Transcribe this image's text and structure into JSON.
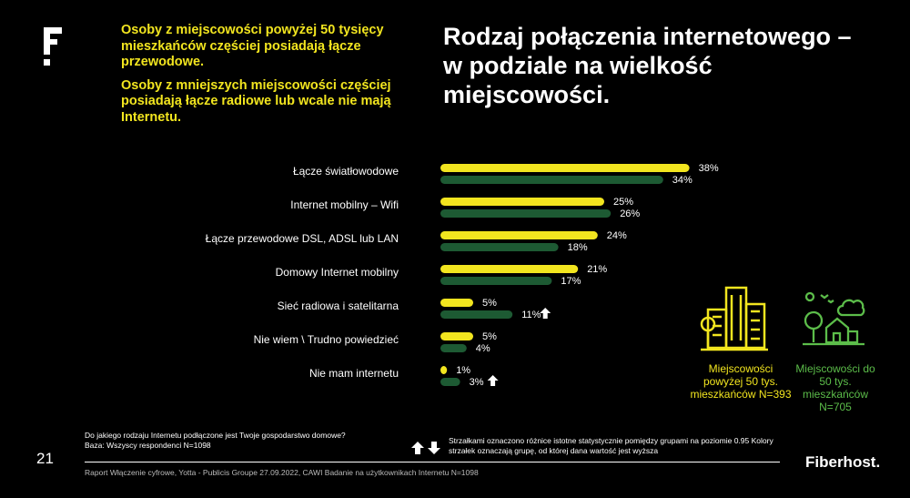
{
  "intro": {
    "p1": "Osoby z miejscowości powyżej 50 tysięcy mieszkańców częściej posiadają łącze przewodowe.",
    "p2": "Osoby z mniejszych miejscowości częściej posiadają łącze radiowe lub wcale nie mają Internetu."
  },
  "title": "Rodzaj połączenia internetowego – w podziale na wielkość miejscowości.",
  "colors": {
    "big": "#f2e51f",
    "small": "#1d5a33",
    "accent_green": "#5cbd4a",
    "background": "#000000"
  },
  "chart_data": {
    "type": "bar",
    "orientation": "horizontal",
    "categories": [
      "Łącze światłowodowe",
      "Internet mobilny – Wifi",
      "Łącze przewodowe DSL, ADSL lub LAN",
      "Domowy Internet mobilny",
      "Sieć radiowa i satelitarna",
      "Nie wiem \\ Trudno powiedzieć",
      "Nie mam internetu"
    ],
    "series": [
      {
        "color": "#f2e51f",
        "values": [
          38,
          25,
          24,
          21,
          5,
          5,
          1
        ],
        "value_labels": [
          "38%",
          "25%",
          "24%",
          "21%",
          "5%",
          "5%",
          "1%"
        ]
      },
      {
        "color": "#1d5a33",
        "values": [
          34,
          26,
          18,
          17,
          11,
          4,
          3
        ],
        "value_labels": [
          "34%",
          "26%",
          "18%",
          "17%",
          "11%",
          "4%",
          "3%"
        ]
      }
    ],
    "significance_arrows": [
      {
        "category_index": 4,
        "series_index": 1,
        "direction": "up"
      },
      {
        "category_index": 6,
        "series_index": 1,
        "direction": "up"
      }
    ],
    "xlim": [
      0,
      40
    ],
    "grid": false,
    "legend": "right"
  },
  "groups": {
    "big": {
      "label": "Miejscowości powyżej 50 tys. mieszkańców N=393",
      "icon": "city-buildings-icon"
    },
    "small": {
      "label": "Miejscowości do 50 tys. mieszkańców N=705",
      "icon": "small-town-icon"
    }
  },
  "footer": {
    "question": "Do jakiego rodzaju Internetu podłączone jest Twoje gospodarstwo domowe?",
    "base": "Baza: Wszyscy respondenci N=1098",
    "arrows_note": "Strzałkami oznaczono różnice istotne statystycznie pomiędzy grupami na poziomie 0.95 Kolory strzałek oznaczają grupę, od której dana wartość jest wyższa",
    "source": "Raport Włączenie cyfrowe, Yotta - Publicis Groupe 27.09.2022, CAWI Badanie na użytkownikach Internetu N=1098",
    "page_number": "21",
    "brand": "Fiberhost."
  }
}
